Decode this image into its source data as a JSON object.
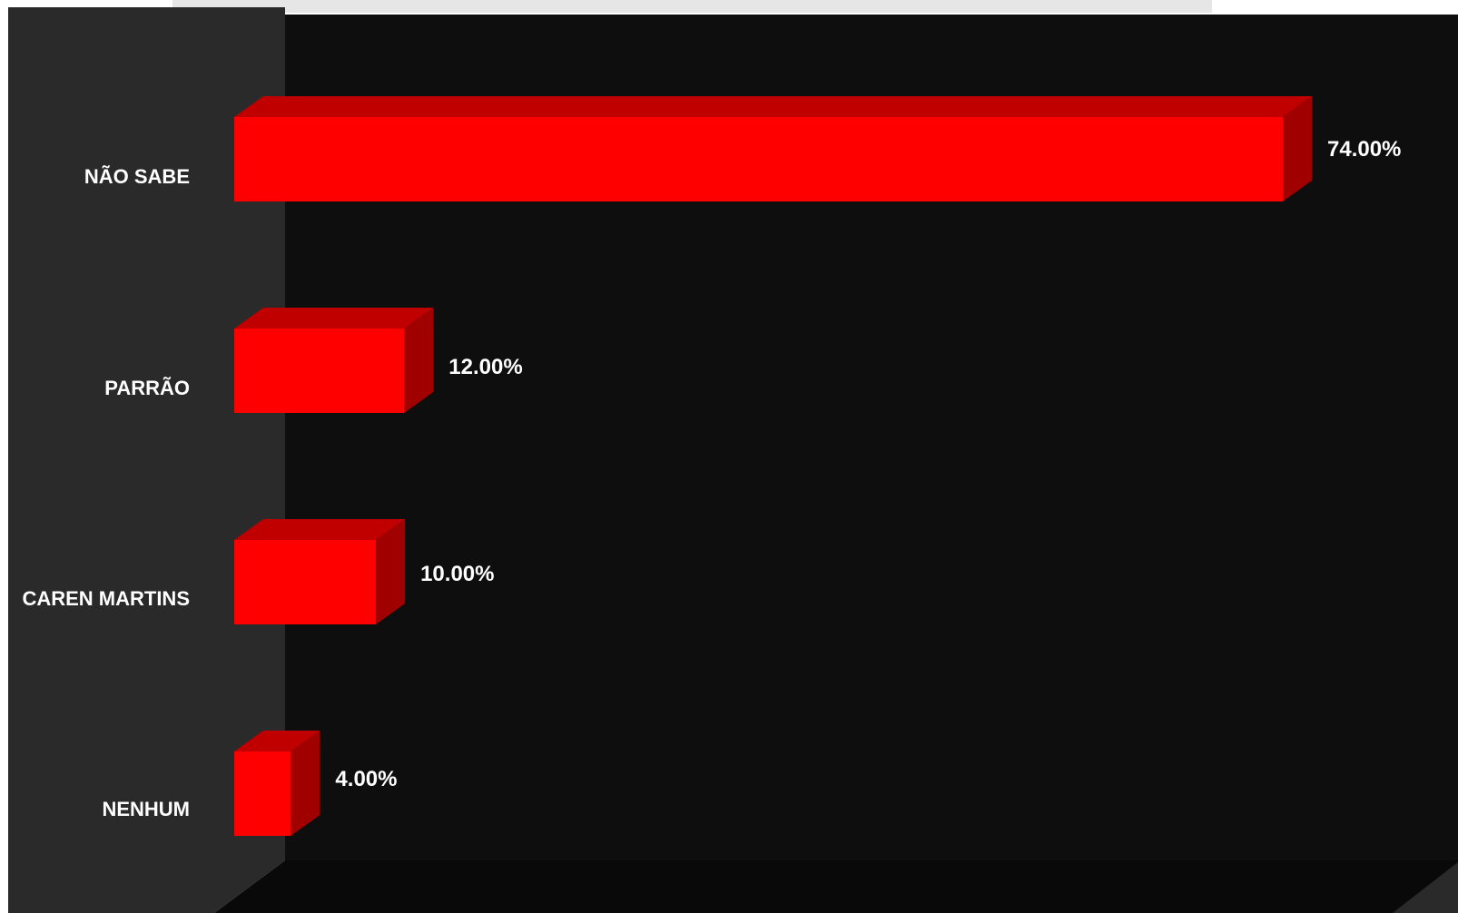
{
  "chart_data": {
    "type": "bar",
    "orientation": "horizontal",
    "style": "3d",
    "categories": [
      "NÃO SABE",
      "PARRÃO",
      "CAREN MARTINS",
      "NENHUM"
    ],
    "values": [
      74.0,
      12.0,
      10.0,
      4.0
    ],
    "value_labels": [
      "74.00%",
      "12.00%",
      "10.00%",
      "4.00%"
    ],
    "xlim": [
      0,
      74
    ],
    "grid": false,
    "legend": "none",
    "colors": {
      "bar_front": "#ff0000",
      "bar_top": "#c00000",
      "bar_side": "#a00000",
      "side_wall": "#2a2a2a",
      "back_wall": "#0e0e0e",
      "floor": "#0a0a0a",
      "text": "#ffffff"
    }
  }
}
